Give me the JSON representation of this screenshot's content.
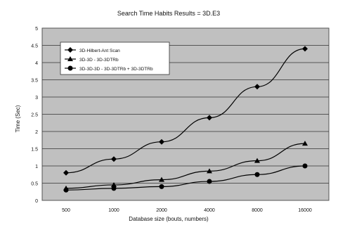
{
  "chart_data": {
    "type": "line",
    "title": "Search Time Habits Results = 3D.E3",
    "xlabel": "Database size (bouts, numbers)",
    "ylabel": "Time (Sec)",
    "categories": [
      "500",
      "1000",
      "2000",
      "4000",
      "8000",
      "16000"
    ],
    "y_tick_labels": [
      "0",
      "0.5",
      "1",
      "1.5",
      "2",
      "2.5",
      "3",
      "3.5",
      "4",
      "4.5",
      "5"
    ],
    "ylim": [
      0,
      5
    ],
    "grid": "horizontal",
    "legend_position": "top-left inside",
    "plot_bg_color": "#c0c0c0",
    "series": [
      {
        "name": "3D-Hilbert-Ant Scan",
        "marker": "diamond",
        "values": [
          0.8,
          1.2,
          1.7,
          2.4,
          3.3,
          4.4
        ]
      },
      {
        "name": "3D-3D - 3D-3DTRb",
        "marker": "triangle",
        "values": [
          0.35,
          0.45,
          0.6,
          0.85,
          1.15,
          1.65
        ]
      },
      {
        "name": "3D-3D-3D - 3D-3DTRb + 3D-3DTRb",
        "marker": "circle",
        "values": [
          0.3,
          0.35,
          0.4,
          0.55,
          0.75,
          1.0
        ]
      }
    ]
  }
}
